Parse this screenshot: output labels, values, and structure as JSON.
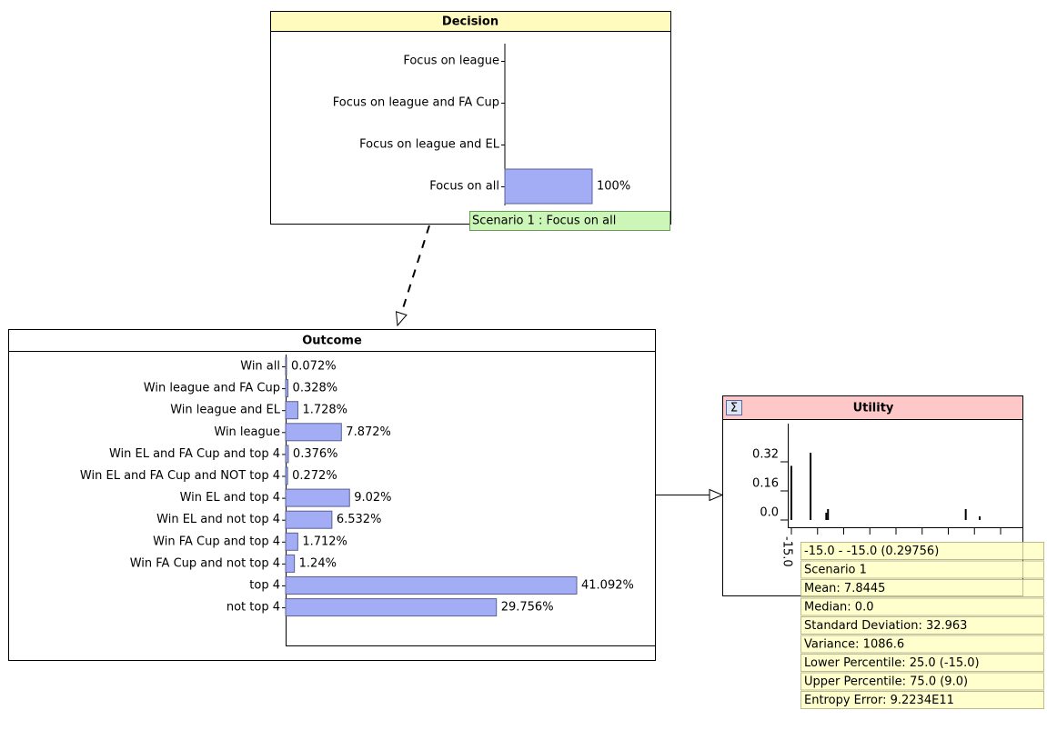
{
  "decision": {
    "title": "Decision",
    "states": [
      "Focus on league",
      "Focus on league and FA Cup",
      "Focus on league and EL",
      "Focus on all"
    ],
    "values": [
      null,
      null,
      null,
      100
    ],
    "value_labels": [
      null,
      null,
      null,
      "100%"
    ],
    "scenario_label": "Scenario 1 : Focus on all"
  },
  "outcome": {
    "title": "Outcome",
    "states": [
      "Win all",
      "Win league and FA Cup",
      "Win league and EL",
      "Win league",
      "Win EL and FA Cup and top 4",
      "Win EL and FA Cup and NOT top 4",
      "Win EL and top 4",
      "Win EL and not top 4",
      "Win FA Cup and top 4",
      "Win FA Cup and not top 4",
      "top 4",
      "not top 4"
    ],
    "values": [
      0.072,
      0.328,
      1.728,
      7.872,
      0.376,
      0.272,
      9.02,
      6.532,
      1.712,
      1.24,
      41.092,
      29.756
    ],
    "value_labels": [
      "0.072%",
      "0.328%",
      "1.728%",
      "7.872%",
      "0.376%",
      "0.272%",
      "9.02%",
      "6.532%",
      "1.712%",
      "1.24%",
      "41.092%",
      "29.756%"
    ]
  },
  "utility": {
    "title": "Utility",
    "ylim": [
      0,
      0.5
    ],
    "yticks": [
      0.32,
      0.16,
      {
        "value": 0,
        "label": "0.0"
      }
    ],
    "xlim": [
      -15,
      105
    ],
    "xticks": [
      {
        "value": -15,
        "label": "-15.0"
      },
      0,
      15,
      30,
      45,
      60,
      75,
      90,
      105
    ],
    "x": [
      -15,
      -4,
      5,
      6,
      85,
      93
    ],
    "values": [
      0.29756,
      0.37,
      0.04,
      0.06,
      0.06,
      0.02
    ],
    "tooltip": [
      "-15.0 - -15.0 (0.29756)",
      "Scenario 1",
      "Mean: 7.8445",
      "Median: 0.0",
      "Standard Deviation: 32.963",
      "Variance: 1086.6",
      "Lower Percentile: 25.0 (-15.0)",
      "Upper Percentile: 75.0 (9.0)",
      "Entropy Error: 9.2234E11"
    ]
  }
}
